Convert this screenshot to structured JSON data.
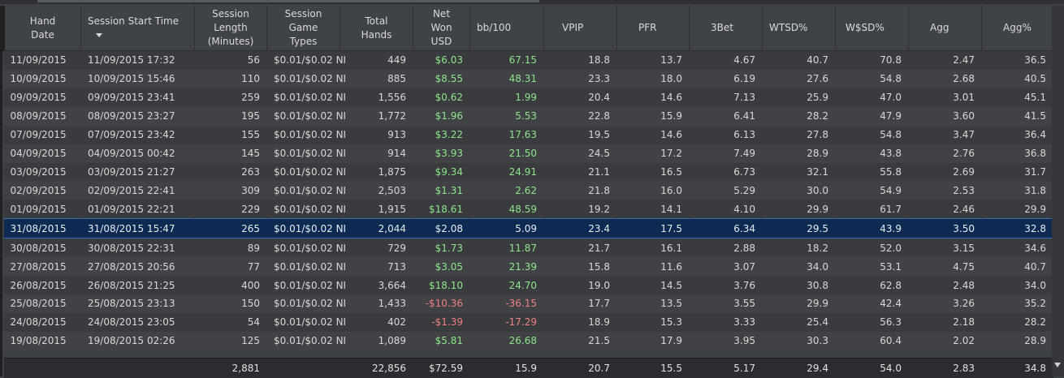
{
  "columns": {
    "hand_date": "Hand\nDate",
    "session_start": "Session Start Time",
    "session_length": "Session\nLength\n(Minutes)",
    "game_types": "Session\nGame\nTypes",
    "total_hands": "Total\nHands",
    "net_won": "Net\nWon\nUSD",
    "bb100": "bb/100",
    "vpip": "VPIP",
    "pfr": "PFR",
    "three_bet": "3Bet",
    "wtsd": "WTSD%",
    "wsd": "W$SD%",
    "agg": "Agg",
    "agg_pct": "Agg%"
  },
  "colors": {
    "positive": "#8ee68a",
    "negative": "#f18080",
    "selected_row": "#0e2a52"
  },
  "rows": [
    {
      "date": "11/09/2015",
      "start": "11/09/2015 17:32",
      "length": "56",
      "game": "$0.01/$0.02 NI",
      "hands": "449",
      "net": "$6.03",
      "bb": "67.15",
      "vpip": "18.8",
      "pfr": "13.7",
      "tbet": "4.67",
      "wtsd": "40.7",
      "wsd": "70.8",
      "agg": "2.47",
      "aggp": "36.5",
      "sign": "pos"
    },
    {
      "date": "10/09/2015",
      "start": "10/09/2015 15:46",
      "length": "110",
      "game": "$0.01/$0.02 NI",
      "hands": "885",
      "net": "$8.55",
      "bb": "48.31",
      "vpip": "23.3",
      "pfr": "18.0",
      "tbet": "6.19",
      "wtsd": "27.6",
      "wsd": "54.8",
      "agg": "2.68",
      "aggp": "40.5",
      "sign": "pos"
    },
    {
      "date": "09/09/2015",
      "start": "09/09/2015 23:41",
      "length": "259",
      "game": "$0.01/$0.02 NI",
      "hands": "1,556",
      "net": "$0.62",
      "bb": "1.99",
      "vpip": "20.4",
      "pfr": "14.6",
      "tbet": "7.13",
      "wtsd": "25.9",
      "wsd": "47.0",
      "agg": "3.01",
      "aggp": "45.1",
      "sign": "pos"
    },
    {
      "date": "08/09/2015",
      "start": "08/09/2015 23:27",
      "length": "195",
      "game": "$0.01/$0.02 NI",
      "hands": "1,772",
      "net": "$1.96",
      "bb": "5.53",
      "vpip": "22.8",
      "pfr": "15.9",
      "tbet": "6.41",
      "wtsd": "28.2",
      "wsd": "47.9",
      "agg": "3.60",
      "aggp": "41.5",
      "sign": "pos"
    },
    {
      "date": "07/09/2015",
      "start": "07/09/2015 23:42",
      "length": "155",
      "game": "$0.01/$0.02 NI",
      "hands": "913",
      "net": "$3.22",
      "bb": "17.63",
      "vpip": "19.5",
      "pfr": "14.6",
      "tbet": "6.13",
      "wtsd": "27.8",
      "wsd": "54.8",
      "agg": "3.47",
      "aggp": "36.4",
      "sign": "pos"
    },
    {
      "date": "04/09/2015",
      "start": "04/09/2015 00:42",
      "length": "145",
      "game": "$0.01/$0.02 NI",
      "hands": "914",
      "net": "$3.93",
      "bb": "21.50",
      "vpip": "24.5",
      "pfr": "17.2",
      "tbet": "7.49",
      "wtsd": "28.9",
      "wsd": "43.8",
      "agg": "2.76",
      "aggp": "36.8",
      "sign": "pos"
    },
    {
      "date": "03/09/2015",
      "start": "03/09/2015 21:27",
      "length": "263",
      "game": "$0.01/$0.02 NI",
      "hands": "1,875",
      "net": "$9.34",
      "bb": "24.91",
      "vpip": "21.1",
      "pfr": "16.5",
      "tbet": "6.73",
      "wtsd": "32.1",
      "wsd": "55.8",
      "agg": "2.69",
      "aggp": "31.7",
      "sign": "pos"
    },
    {
      "date": "02/09/2015",
      "start": "02/09/2015 22:41",
      "length": "309",
      "game": "$0.01/$0.02 NI",
      "hands": "2,503",
      "net": "$1.31",
      "bb": "2.62",
      "vpip": "21.8",
      "pfr": "16.0",
      "tbet": "5.29",
      "wtsd": "30.0",
      "wsd": "54.9",
      "agg": "2.53",
      "aggp": "31.8",
      "sign": "pos"
    },
    {
      "date": "01/09/2015",
      "start": "01/09/2015 22:21",
      "length": "229",
      "game": "$0.01/$0.02 NI",
      "hands": "1,915",
      "net": "$18.61",
      "bb": "48.59",
      "vpip": "19.2",
      "pfr": "14.1",
      "tbet": "4.10",
      "wtsd": "29.9",
      "wsd": "61.7",
      "agg": "2.46",
      "aggp": "29.9",
      "sign": "pos"
    },
    {
      "date": "31/08/2015",
      "start": "31/08/2015 15:47",
      "length": "265",
      "game": "$0.01/$0.02 NI",
      "hands": "2,044",
      "net": "$2.08",
      "bb": "5.09",
      "vpip": "23.4",
      "pfr": "17.5",
      "tbet": "6.34",
      "wtsd": "29.5",
      "wsd": "43.9",
      "agg": "3.50",
      "aggp": "32.8",
      "sign": "pos",
      "selected": true
    },
    {
      "date": "30/08/2015",
      "start": "30/08/2015 22:31",
      "length": "89",
      "game": "$0.01/$0.02 NI",
      "hands": "729",
      "net": "$1.73",
      "bb": "11.87",
      "vpip": "21.7",
      "pfr": "16.1",
      "tbet": "2.88",
      "wtsd": "18.2",
      "wsd": "52.0",
      "agg": "3.15",
      "aggp": "34.6",
      "sign": "pos"
    },
    {
      "date": "27/08/2015",
      "start": "27/08/2015 20:56",
      "length": "77",
      "game": "$0.01/$0.02 NI",
      "hands": "713",
      "net": "$3.05",
      "bb": "21.39",
      "vpip": "15.8",
      "pfr": "11.6",
      "tbet": "3.07",
      "wtsd": "34.0",
      "wsd": "53.1",
      "agg": "4.75",
      "aggp": "40.7",
      "sign": "pos"
    },
    {
      "date": "26/08/2015",
      "start": "26/08/2015 21:25",
      "length": "400",
      "game": "$0.01/$0.02 NI",
      "hands": "3,664",
      "net": "$18.10",
      "bb": "24.70",
      "vpip": "19.0",
      "pfr": "14.5",
      "tbet": "3.76",
      "wtsd": "30.8",
      "wsd": "62.8",
      "agg": "2.48",
      "aggp": "34.0",
      "sign": "pos"
    },
    {
      "date": "25/08/2015",
      "start": "25/08/2015 23:13",
      "length": "150",
      "game": "$0.01/$0.02 NI",
      "hands": "1,433",
      "net": "-$10.36",
      "bb": "-36.15",
      "vpip": "17.7",
      "pfr": "13.5",
      "tbet": "3.55",
      "wtsd": "29.9",
      "wsd": "42.4",
      "agg": "3.26",
      "aggp": "35.2",
      "sign": "neg"
    },
    {
      "date": "24/08/2015",
      "start": "24/08/2015 23:05",
      "length": "54",
      "game": "$0.01/$0.02 NI",
      "hands": "402",
      "net": "-$1.39",
      "bb": "-17.29",
      "vpip": "18.9",
      "pfr": "15.3",
      "tbet": "3.33",
      "wtsd": "25.4",
      "wsd": "56.3",
      "agg": "2.18",
      "aggp": "28.2",
      "sign": "neg"
    },
    {
      "date": "19/08/2015",
      "start": "19/08/2015 02:26",
      "length": "125",
      "game": "$0.01/$0.02 NI",
      "hands": "1,089",
      "net": "$5.81",
      "bb": "26.68",
      "vpip": "21.5",
      "pfr": "17.9",
      "tbet": "3.95",
      "wtsd": "30.3",
      "wsd": "60.4",
      "agg": "2.02",
      "aggp": "28.9",
      "sign": "pos"
    }
  ],
  "totals": {
    "length": "2,881",
    "hands": "22,856",
    "net": "$72.59",
    "bb": "15.9",
    "vpip": "20.7",
    "pfr": "15.5",
    "tbet": "5.17",
    "wtsd": "29.4",
    "wsd": "54.0",
    "agg": "2.83",
    "aggp": "34.8"
  }
}
